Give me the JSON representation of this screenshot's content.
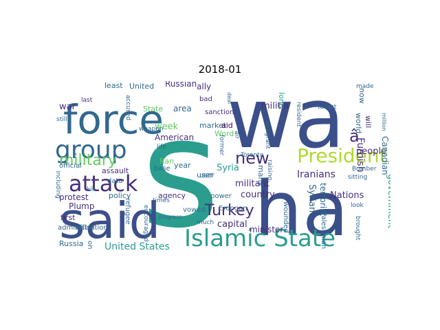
{
  "title": "2018-01",
  "colors": {
    "navy": "#3b4f8a",
    "teal": "#2a9d8f",
    "green": "#5ec962",
    "lime": "#addc30",
    "purple": "#472d7b",
    "deepblue": "#31688e",
    "darkpurple": "#440154",
    "mint": "#35b779"
  },
  "words": [
    {
      "text": "wa",
      "color": "navy"
    },
    {
      "text": "s",
      "color": "teal"
    },
    {
      "text": "ha",
      "color": "navy"
    },
    {
      "text": "said",
      "color": "navy"
    },
    {
      "text": "force",
      "color": "deepblue"
    },
    {
      "text": "group",
      "color": "deepblue"
    },
    {
      "text": "Islamic State",
      "color": "teal"
    },
    {
      "text": "attack",
      "color": "purple"
    },
    {
      "text": "President",
      "color": "lime"
    },
    {
      "text": "military",
      "color": "green"
    },
    {
      "text": "Turkey",
      "color": "purple"
    },
    {
      "text": "new",
      "color": "purple"
    },
    {
      "text": "â",
      "color": "purple"
    },
    {
      "text": "Iranians",
      "color": "purple"
    },
    {
      "text": "Furnish",
      "color": "purple"
    },
    {
      "text": "militia",
      "color": "purple"
    },
    {
      "text": "week",
      "color": "green"
    },
    {
      "text": "American",
      "color": "purple"
    },
    {
      "text": "Russian",
      "color": "purple"
    },
    {
      "text": "Syria",
      "color": "teal"
    },
    {
      "text": "country",
      "color": "purple"
    },
    {
      "text": "capital",
      "color": "purple"
    },
    {
      "text": "Nations",
      "color": "purple"
    },
    {
      "text": "United States",
      "color": "teal"
    },
    {
      "text": "people",
      "color": "purple"
    },
    {
      "text": "Canadian",
      "color": "deepblue"
    },
    {
      "text": "government",
      "color": "teal"
    },
    {
      "text": "terrorist",
      "color": "deepblue"
    },
    {
      "text": "Syrian",
      "color": "deepblue"
    },
    {
      "text": "militant",
      "color": "purple"
    },
    {
      "text": "minister",
      "color": "purple"
    },
    {
      "text": "Ran",
      "color": "green"
    },
    {
      "text": "agency",
      "color": "purple"
    },
    {
      "text": "policy",
      "color": "deepblue"
    },
    {
      "text": "Plump",
      "color": "purple"
    },
    {
      "text": "protest",
      "color": "purple"
    },
    {
      "text": "war",
      "color": "purple"
    },
    {
      "text": "first",
      "color": "purple"
    },
    {
      "text": "Russia",
      "color": "deepblue"
    },
    {
      "text": "United",
      "color": "deepblue"
    },
    {
      "text": "least",
      "color": "deepblue"
    },
    {
      "text": "ally",
      "color": "purple"
    },
    {
      "text": "area",
      "color": "deepblue"
    },
    {
      "text": "State",
      "color": "green"
    },
    {
      "text": "market",
      "color": "deepblue"
    },
    {
      "text": "year",
      "color": "deepblue"
    },
    {
      "text": "user",
      "color": "deepblue"
    },
    {
      "text": "aid",
      "color": "darkpurple"
    },
    {
      "text": "Word",
      "color": "green"
    },
    {
      "text": "long",
      "color": "teal"
    },
    {
      "text": "world",
      "color": "deepblue"
    },
    {
      "text": "now",
      "color": "deepblue"
    },
    {
      "text": "will",
      "color": "purple"
    },
    {
      "text": "many",
      "color": "deepblue"
    },
    {
      "text": "Erdogan",
      "color": "deepblue"
    },
    {
      "text": "Palestinian",
      "color": "deepblue"
    },
    {
      "text": "wounded",
      "color": "deepblue"
    },
    {
      "text": "Toronto",
      "color": "deepblue"
    },
    {
      "text": "power",
      "color": "deepblue"
    },
    {
      "text": "vowed",
      "color": "deepblue"
    },
    {
      "text": "base",
      "color": "deepblue"
    },
    {
      "text": "assault",
      "color": "purple"
    },
    {
      "text": "data",
      "color": "deepblue"
    },
    {
      "text": "official",
      "color": "deepblue"
    },
    {
      "text": "refugee",
      "color": "deepblue"
    },
    {
      "text": "administration",
      "color": "deepblue"
    },
    {
      "text": "one",
      "color": "deepblue"
    },
    {
      "text": "office",
      "color": "deepblue"
    },
    {
      "text": "sanction",
      "color": "purple"
    },
    {
      "text": "bad",
      "color": "purple"
    },
    {
      "text": "user",
      "color": "deepblue"
    },
    {
      "text": "emigrant",
      "color": "deepblue"
    },
    {
      "text": "accused",
      "color": "deepblue"
    },
    {
      "text": "weapon",
      "color": "deepblue"
    },
    {
      "text": "times",
      "color": "deepblue"
    },
    {
      "text": "life",
      "color": "deepblue"
    },
    {
      "text": "much",
      "color": "deepblue"
    },
    {
      "text": "former",
      "color": "deepblue"
    },
    {
      "text": "encouraged",
      "color": "deepblue"
    },
    {
      "text": "last",
      "color": "purple"
    },
    {
      "text": "kill",
      "color": "deepblue"
    },
    {
      "text": "including",
      "color": "deepblue"
    },
    {
      "text": "raising",
      "color": "deepblue"
    },
    {
      "text": "resident",
      "color": "deepblue"
    },
    {
      "text": "target",
      "color": "deepblue"
    },
    {
      "text": "sitting",
      "color": "deepblue"
    },
    {
      "text": "look",
      "color": "deepblue"
    },
    {
      "text": "brought",
      "color": "deepblue"
    },
    {
      "text": "made",
      "color": "deepblue"
    },
    {
      "text": "million",
      "color": "deepblue"
    },
    {
      "text": "deal",
      "color": "deepblue"
    },
    {
      "text": "still",
      "color": "deepblue"
    },
    {
      "text": "air",
      "color": "deepblue"
    },
    {
      "text": "Bomber",
      "color": "deepblue"
    },
    {
      "text": "progress",
      "color": "deepblue"
    }
  ]
}
